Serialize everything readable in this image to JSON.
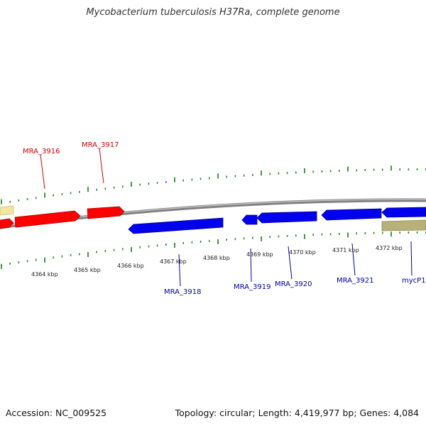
{
  "title": "Mycobacterium tuberculosis H37Ra, complete genome",
  "footer": {
    "accession": "Accession: NC_009525",
    "summary": "Topology: circular; Length: 4,419,977 bp; Genes: 4,084"
  },
  "colors": {
    "forward_gene": "#ff0000",
    "reverse_gene": "#0000ee",
    "feature_yellow": "#f2e6a0",
    "feature_olive": "#b7b079",
    "tick_green": "#2e8b2e",
    "backbone": "#808080",
    "forward_label": "#cc0000",
    "reverse_label": "#000099"
  },
  "scale": {
    "ticks": [
      {
        "label": "4364 kbp",
        "kbp": 4364
      },
      {
        "label": "4365 kbp",
        "kbp": 4365
      },
      {
        "label": "4366 kbp",
        "kbp": 4366
      },
      {
        "label": "4367 kbp",
        "kbp": 4367
      },
      {
        "label": "4368 kbp",
        "kbp": 4368
      },
      {
        "label": "4369 kbp",
        "kbp": 4369
      },
      {
        "label": "4370 kbp",
        "kbp": 4370
      },
      {
        "label": "4371 kbp",
        "kbp": 4371
      },
      {
        "label": "4372 kbp",
        "kbp": 4372
      }
    ]
  },
  "genes": [
    {
      "label": "MRA_3916",
      "strand": "forward"
    },
    {
      "label": "MRA_3917",
      "strand": "forward"
    },
    {
      "label": "MRA_3918",
      "strand": "reverse"
    },
    {
      "label": "MRA_3919",
      "strand": "reverse"
    },
    {
      "label": "MRA_3920",
      "strand": "reverse"
    },
    {
      "label": "MRA_3921",
      "strand": "reverse"
    },
    {
      "label": "mycP1",
      "strand": "reverse"
    }
  ]
}
